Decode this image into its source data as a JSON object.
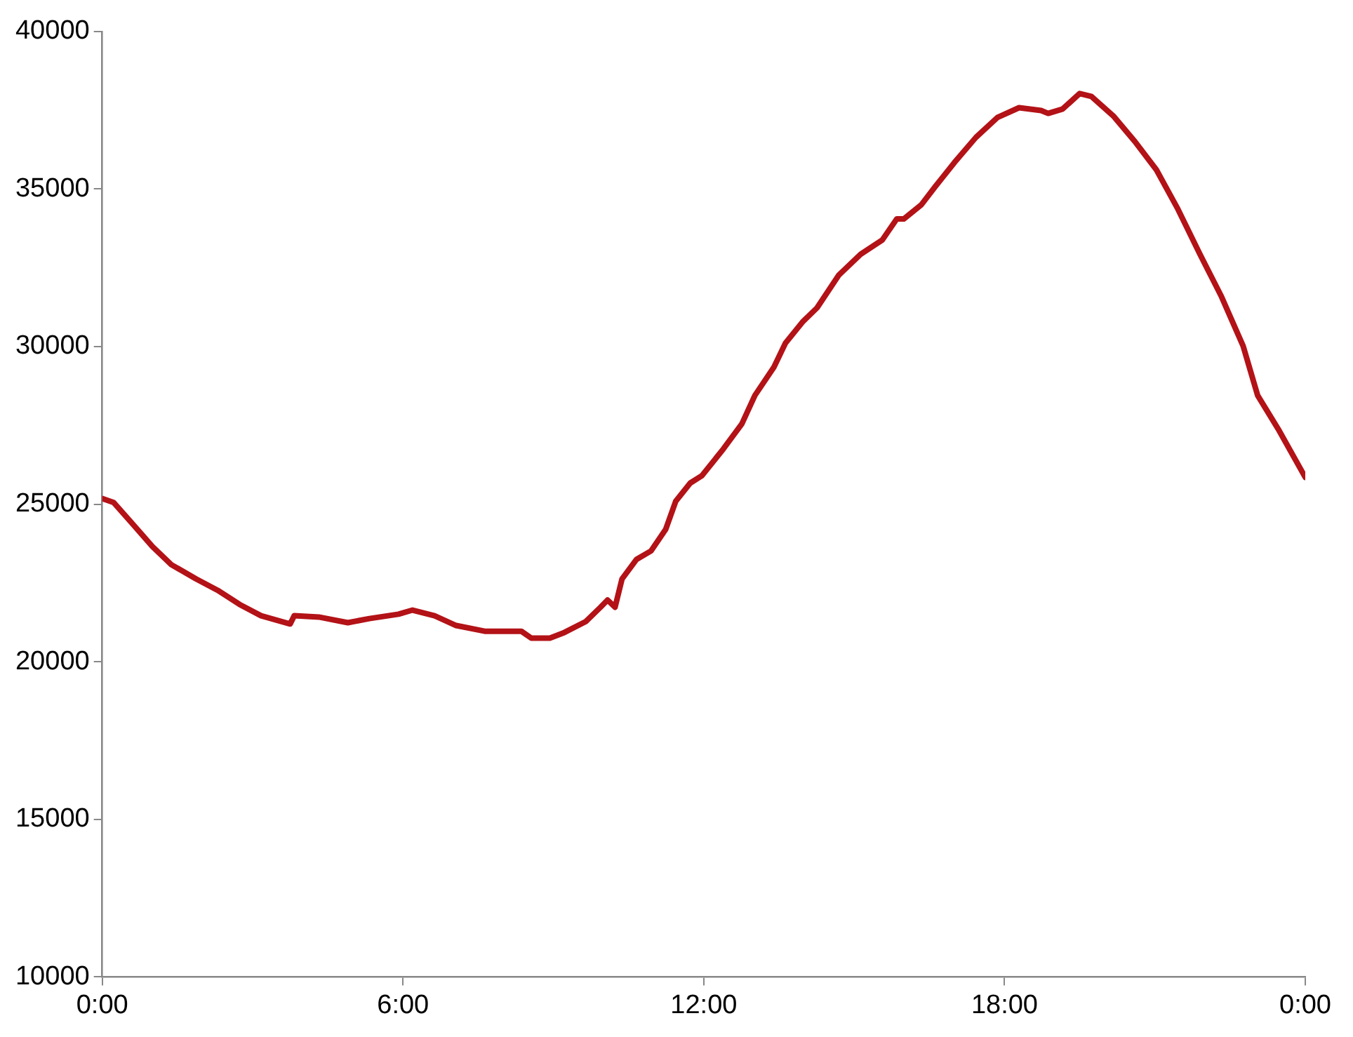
{
  "chart_data": {
    "type": "line",
    "x": [
      0,
      0.23,
      0.58,
      1.0,
      1.38,
      1.87,
      2.3,
      2.74,
      3.17,
      3.75,
      3.83,
      4.32,
      4.9,
      5.33,
      5.91,
      6.19,
      6.63,
      7.06,
      7.63,
      8.07,
      8.36,
      8.56,
      8.93,
      9.22,
      9.65,
      9.94,
      10.08,
      10.23,
      10.37,
      10.66,
      10.95,
      11.24,
      11.44,
      11.73,
      11.96,
      12.39,
      12.76,
      13.02,
      13.4,
      13.63,
      13.97,
      14.26,
      14.69,
      15.13,
      15.56,
      15.85,
      15.99,
      16.34,
      16.62,
      17.0,
      17.43,
      17.86,
      18.29,
      18.73,
      18.87,
      19.16,
      19.5,
      19.73,
      20.17,
      20.6,
      21.03,
      21.46,
      21.9,
      22.33,
      22.76,
      23.05,
      23.48,
      24.0
    ],
    "series": [
      {
        "color": "#b31217",
        "values": [
          25180,
          25050,
          24420,
          23660,
          23080,
          22630,
          22270,
          21820,
          21460,
          21200,
          21460,
          21420,
          21240,
          21370,
          21510,
          21640,
          21460,
          21150,
          20970,
          20970,
          20970,
          20750,
          20750,
          20930,
          21280,
          21730,
          21960,
          21730,
          22630,
          23250,
          23520,
          24200,
          25090,
          25670,
          25900,
          26750,
          27550,
          28450,
          29350,
          30110,
          30780,
          31230,
          32260,
          32930,
          33380,
          34050,
          34050,
          34500,
          35080,
          35840,
          36640,
          37270,
          37580,
          37490,
          37400,
          37540,
          38030,
          37940,
          37320,
          36510,
          35610,
          34360,
          32930,
          31580,
          30020,
          28450,
          27330,
          25850
        ]
      }
    ],
    "xlim": [
      0,
      24
    ],
    "xticks": [
      {
        "value": 0,
        "label": "0:00"
      },
      {
        "value": 6,
        "label": "6:00"
      },
      {
        "value": 12,
        "label": "12:00"
      },
      {
        "value": 18,
        "label": "18:00"
      },
      {
        "value": 24,
        "label": "0:00"
      }
    ],
    "ylim": [
      10000,
      40000
    ],
    "yticks": [
      10000,
      15000,
      20000,
      25000,
      30000,
      35000,
      40000
    ],
    "grid": false,
    "legend": false,
    "marker": "none",
    "line_style": "solid"
  }
}
